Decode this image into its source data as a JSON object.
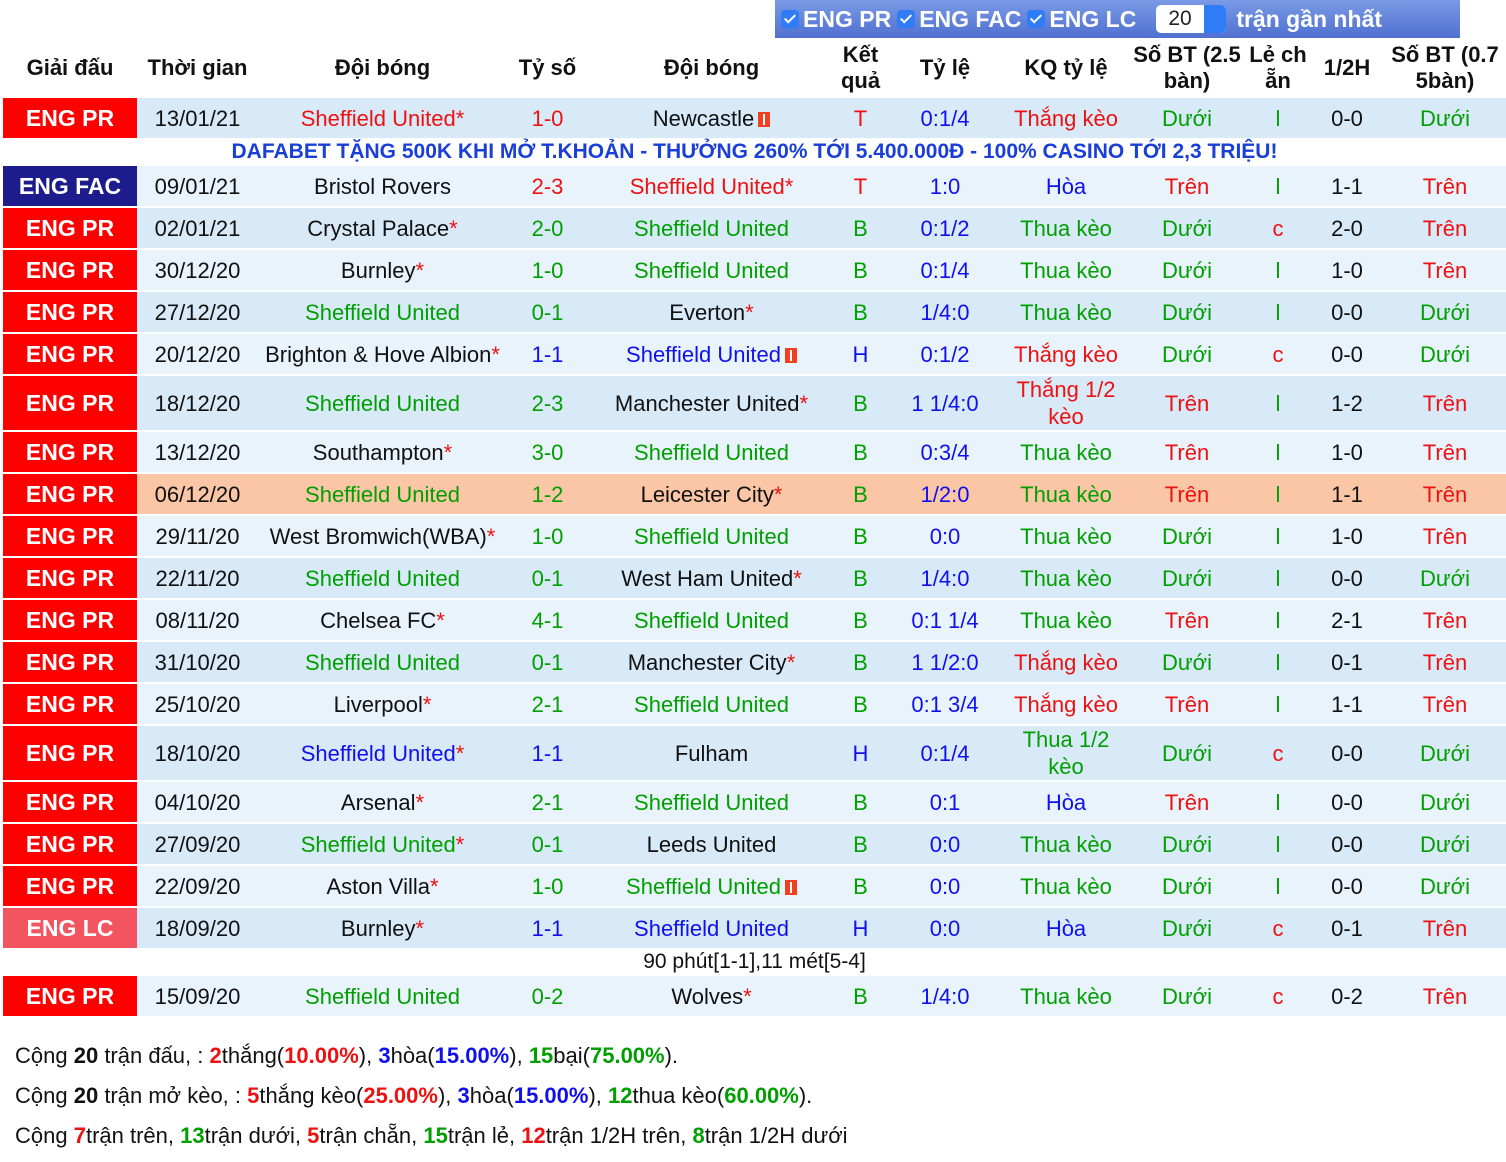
{
  "filters": {
    "leagues": [
      "ENG PR",
      "ENG FAC",
      "ENG LC"
    ],
    "count": "20",
    "suffix": "trận gần nhất"
  },
  "table": {
    "headers": [
      "Giải đấu",
      "Thời gian",
      "Đội bóng",
      "Tỷ số",
      "Đội bóng",
      "Kết quả",
      "Tỷ lệ",
      "KQ tỷ lệ",
      "Số BT (2.5bàn)",
      "Lẻ chẵn",
      "1/2H",
      "Số BT (0.75bàn)"
    ],
    "palette": {
      "ENG PR": "#ff0000",
      "ENG FAC": "#1c1c8c",
      "ENG LC": "#f25560",
      "T": "#ee1111",
      "B": "#009f00",
      "H": "#1010ee",
      "Thắng kèo": "#ee1111",
      "Thắng 1/2 kèo": "#ee1111",
      "Thua kèo": "#009f00",
      "Thua 1/2 kèo": "#009f00",
      "Hòa": "#1010ee",
      "Trên": "#ee1111",
      "Dưới": "#009f00",
      "l": "#009f00",
      "c": "#ee1111"
    },
    "rows": [
      {
        "league": "ENG PR",
        "date": "13/01/21",
        "home": "Sheffield United",
        "home_star": "*",
        "home_color": "#ee1111",
        "score": "1-0",
        "away": "Newcastle",
        "away_card": true,
        "result": "T",
        "rate": "0:1/4",
        "kq": "Thắng kèo",
        "bt": "Dưới",
        "lc": "l",
        "half": "0-0",
        "bt2": "Dưới",
        "banner": "DAFABET TẶNG 500K KHI MỞ T.KHOẢN - THƯỞNG 260% TỚI 5.400.000Đ - 100% CASINO TỚI 2,3 TRIỆU!"
      },
      {
        "league": "ENG FAC",
        "date": "09/01/21",
        "home": "Bristol Rovers",
        "score": "2-3",
        "away": "Sheffield United",
        "away_star": "*",
        "away_color": "#ee1111",
        "result": "T",
        "rate": "1:0",
        "kq": "Hòa",
        "bt": "Trên",
        "lc": "l",
        "half": "1-1",
        "bt2": "Trên"
      },
      {
        "league": "ENG PR",
        "date": "02/01/21",
        "home": "Crystal Palace",
        "home_star": "*",
        "score": "2-0",
        "away": "Sheffield United",
        "away_color": "#009f00",
        "result": "B",
        "rate": "0:1/2",
        "kq": "Thua kèo",
        "bt": "Dưới",
        "lc": "c",
        "half": "2-0",
        "bt2": "Trên"
      },
      {
        "league": "ENG PR",
        "date": "30/12/20",
        "home": "Burnley",
        "home_star": "*",
        "score": "1-0",
        "away": "Sheffield United",
        "away_color": "#009f00",
        "result": "B",
        "rate": "0:1/4",
        "kq": "Thua kèo",
        "bt": "Dưới",
        "lc": "l",
        "half": "1-0",
        "bt2": "Trên"
      },
      {
        "league": "ENG PR",
        "date": "27/12/20",
        "home": "Sheffield United",
        "home_color": "#009f00",
        "score": "0-1",
        "away": "Everton",
        "away_star": "*",
        "result": "B",
        "rate": "1/4:0",
        "kq": "Thua kèo",
        "bt": "Dưới",
        "lc": "l",
        "half": "0-0",
        "bt2": "Dưới"
      },
      {
        "league": "ENG PR",
        "date": "20/12/20",
        "home": "Brighton & Hove Albion",
        "home_star": "*",
        "score": "1-1",
        "away": "Sheffield United",
        "away_color": "#1010ee",
        "away_card": true,
        "result": "H",
        "rate": "0:1/2",
        "kq": "Thắng kèo",
        "bt": "Dưới",
        "lc": "c",
        "half": "0-0",
        "bt2": "Dưới"
      },
      {
        "league": "ENG PR",
        "date": "18/12/20",
        "home": "Sheffield United",
        "home_color": "#009f00",
        "score": "2-3",
        "away": "Manchester United",
        "away_star": "*",
        "result": "B",
        "rate": "1 1/4:0",
        "kq": "Thắng 1/2 kèo",
        "bt": "Trên",
        "lc": "l",
        "half": "1-2",
        "bt2": "Trên"
      },
      {
        "league": "ENG PR",
        "date": "13/12/20",
        "home": "Southampton",
        "home_star": "*",
        "score": "3-0",
        "away": "Sheffield United",
        "away_color": "#009f00",
        "result": "B",
        "rate": "0:3/4",
        "kq": "Thua kèo",
        "bt": "Trên",
        "lc": "l",
        "half": "1-0",
        "bt2": "Trên"
      },
      {
        "league": "ENG PR",
        "date": "06/12/20",
        "home": "Sheffield United",
        "home_color": "#009f00",
        "score": "1-2",
        "away": "Leicester City",
        "away_star": "*",
        "result": "B",
        "rate": "1/2:0",
        "kq": "Thua kèo",
        "bt": "Trên",
        "lc": "l",
        "half": "1-1",
        "bt2": "Trên",
        "bg": "#fbc6a6"
      },
      {
        "league": "ENG PR",
        "date": "29/11/20",
        "home": "West Bromwich(WBA)",
        "home_star": "*",
        "score": "1-0",
        "away": "Sheffield United",
        "away_color": "#009f00",
        "result": "B",
        "rate": "0:0",
        "kq": "Thua kèo",
        "bt": "Dưới",
        "lc": "l",
        "half": "1-0",
        "bt2": "Trên"
      },
      {
        "league": "ENG PR",
        "date": "22/11/20",
        "home": "Sheffield United",
        "home_color": "#009f00",
        "score": "0-1",
        "away": "West Ham United",
        "away_star": "*",
        "result": "B",
        "rate": "1/4:0",
        "kq": "Thua kèo",
        "bt": "Dưới",
        "lc": "l",
        "half": "0-0",
        "bt2": "Dưới"
      },
      {
        "league": "ENG PR",
        "date": "08/11/20",
        "home": "Chelsea FC",
        "home_star": "*",
        "score": "4-1",
        "away": "Sheffield United",
        "away_color": "#009f00",
        "result": "B",
        "rate": "0:1 1/4",
        "kq": "Thua kèo",
        "bt": "Trên",
        "lc": "l",
        "half": "2-1",
        "bt2": "Trên"
      },
      {
        "league": "ENG PR",
        "date": "31/10/20",
        "home": "Sheffield United",
        "home_color": "#009f00",
        "score": "0-1",
        "away": "Manchester City",
        "away_star": "*",
        "result": "B",
        "rate": "1 1/2:0",
        "kq": "Thắng kèo",
        "bt": "Dưới",
        "lc": "l",
        "half": "0-1",
        "bt2": "Trên"
      },
      {
        "league": "ENG PR",
        "date": "25/10/20",
        "home": "Liverpool",
        "home_star": "*",
        "score": "2-1",
        "away": "Sheffield United",
        "away_color": "#009f00",
        "result": "B",
        "rate": "0:1 3/4",
        "kq": "Thắng kèo",
        "bt": "Trên",
        "lc": "l",
        "half": "1-1",
        "bt2": "Trên"
      },
      {
        "league": "ENG PR",
        "date": "18/10/20",
        "home": "Sheffield United",
        "home_star": "*",
        "home_color": "#1010ee",
        "score": "1-1",
        "away": "Fulham",
        "result": "H",
        "rate": "0:1/4",
        "kq": "Thua 1/2 kèo",
        "bt": "Dưới",
        "lc": "c",
        "half": "0-0",
        "bt2": "Dưới"
      },
      {
        "league": "ENG PR",
        "date": "04/10/20",
        "home": "Arsenal",
        "home_star": "*",
        "score": "2-1",
        "away": "Sheffield United",
        "away_color": "#009f00",
        "result": "B",
        "rate": "0:1",
        "kq": "Hòa",
        "bt": "Trên",
        "lc": "l",
        "half": "0-0",
        "bt2": "Dưới"
      },
      {
        "league": "ENG PR",
        "date": "27/09/20",
        "home": "Sheffield United",
        "home_star": "*",
        "home_color": "#009f00",
        "score": "0-1",
        "away": "Leeds United",
        "result": "B",
        "rate": "0:0",
        "kq": "Thua kèo",
        "bt": "Dưới",
        "lc": "l",
        "half": "0-0",
        "bt2": "Dưới"
      },
      {
        "league": "ENG PR",
        "date": "22/09/20",
        "home": "Aston Villa",
        "home_star": "*",
        "score": "1-0",
        "away": "Sheffield United",
        "away_color": "#009f00",
        "away_card": true,
        "result": "B",
        "rate": "0:0",
        "kq": "Thua kèo",
        "bt": "Dưới",
        "lc": "l",
        "half": "0-0",
        "bt2": "Dưới"
      },
      {
        "league": "ENG LC",
        "date": "18/09/20",
        "home": "Burnley",
        "home_star": "*",
        "score": "1-1",
        "away": "Sheffield United",
        "away_color": "#1010ee",
        "result": "H",
        "rate": "0:0",
        "kq": "Hòa",
        "bt": "Dưới",
        "lc": "c",
        "half": "0-1",
        "bt2": "Trên",
        "note": "90 phút[1-1],11 mét[5-4]"
      },
      {
        "league": "ENG PR",
        "date": "15/09/20",
        "home": "Sheffield United",
        "home_color": "#009f00",
        "score": "0-2",
        "away": "Wolves",
        "away_star": "*",
        "result": "B",
        "rate": "1/4:0",
        "kq": "Thua kèo",
        "bt": "Dưới",
        "lc": "c",
        "half": "0-2",
        "bt2": "Trên"
      }
    ]
  },
  "summary": [
    [
      {
        "text": "Cộng "
      },
      {
        "text": "20",
        "bold": true
      },
      {
        "text": " trận đấu, : "
      },
      {
        "text": "2",
        "bold": true,
        "color": "#ee1111"
      },
      {
        "text": "thắng("
      },
      {
        "text": "10.00%",
        "bold": true,
        "color": "#ee1111"
      },
      {
        "text": "), "
      },
      {
        "text": "3",
        "bold": true,
        "color": "#1010ee"
      },
      {
        "text": "hòa("
      },
      {
        "text": "15.00%",
        "bold": true,
        "color": "#1010ee"
      },
      {
        "text": "), "
      },
      {
        "text": "15",
        "bold": true,
        "color": "#009f00"
      },
      {
        "text": "bại("
      },
      {
        "text": "75.00%",
        "bold": true,
        "color": "#009f00"
      },
      {
        "text": ")."
      }
    ],
    [
      {
        "text": "Cộng "
      },
      {
        "text": "20",
        "bold": true
      },
      {
        "text": " trận mở kèo, : "
      },
      {
        "text": "5",
        "bold": true,
        "color": "#ee1111"
      },
      {
        "text": "thắng kèo("
      },
      {
        "text": "25.00%",
        "bold": true,
        "color": "#ee1111"
      },
      {
        "text": "), "
      },
      {
        "text": "3",
        "bold": true,
        "color": "#1010ee"
      },
      {
        "text": "hòa("
      },
      {
        "text": "15.00%",
        "bold": true,
        "color": "#1010ee"
      },
      {
        "text": "), "
      },
      {
        "text": "12",
        "bold": true,
        "color": "#009f00"
      },
      {
        "text": "thua kèo("
      },
      {
        "text": "60.00%",
        "bold": true,
        "color": "#009f00"
      },
      {
        "text": ")."
      }
    ],
    [
      {
        "text": "Cộng "
      },
      {
        "text": "7",
        "bold": true,
        "color": "#ee1111"
      },
      {
        "text": "trận trên, "
      },
      {
        "text": "13",
        "bold": true,
        "color": "#009f00"
      },
      {
        "text": "trận dưới, "
      },
      {
        "text": "5",
        "bold": true,
        "color": "#ee1111"
      },
      {
        "text": "trận chẵn, "
      },
      {
        "text": "15",
        "bold": true,
        "color": "#009f00"
      },
      {
        "text": "trận lẻ, "
      },
      {
        "text": "12",
        "bold": true,
        "color": "#ee1111"
      },
      {
        "text": "trận 1/2H trên, "
      },
      {
        "text": "8",
        "bold": true,
        "color": "#009f00"
      },
      {
        "text": "trận 1/2H dưới"
      }
    ]
  ]
}
